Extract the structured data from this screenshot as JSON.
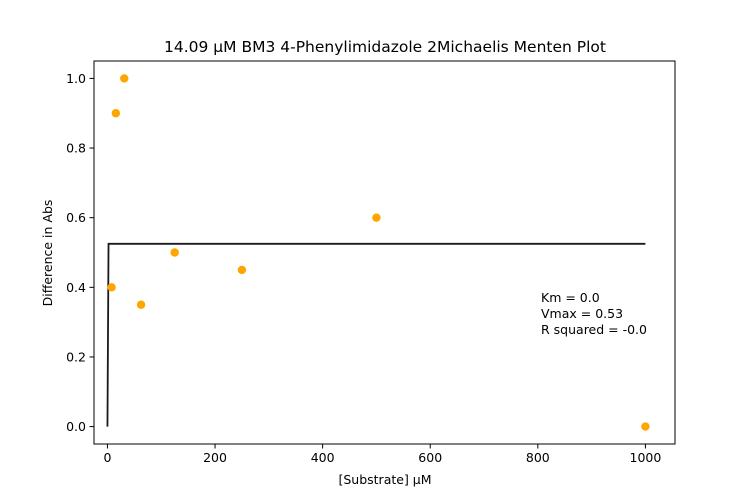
{
  "chart_data": {
    "type": "scatter",
    "title": "14.09 µM BM3 4-Phenylimidazole 2Michaelis Menten Plot",
    "xlabel": "[Substrate] µM",
    "ylabel": "Difference in Abs",
    "xlim": [
      -25,
      1055
    ],
    "ylim": [
      -0.05,
      1.05
    ],
    "xticks": [
      0,
      200,
      400,
      600,
      800,
      1000
    ],
    "yticks": [
      0.0,
      0.2,
      0.4,
      0.6,
      0.8,
      1.0
    ],
    "xtick_labels": [
      "0",
      "200",
      "400",
      "600",
      "800",
      "1000"
    ],
    "ytick_labels": [
      "0.0",
      "0.2",
      "0.4",
      "0.6",
      "0.8",
      "1.0"
    ],
    "grid": false,
    "series": [
      {
        "kind": "scatter",
        "color": "#ffa500",
        "points": [
          {
            "x": 7.8,
            "y": 0.4
          },
          {
            "x": 15.6,
            "y": 0.9
          },
          {
            "x": 31.25,
            "y": 1.0
          },
          {
            "x": 62.5,
            "y": 0.35
          },
          {
            "x": 125,
            "y": 0.5
          },
          {
            "x": 250,
            "y": 0.45
          },
          {
            "x": 500,
            "y": 0.6
          },
          {
            "x": 1000,
            "y": 0.0
          }
        ]
      },
      {
        "kind": "line",
        "color": "#1a1a1a",
        "points": [
          {
            "x": 0,
            "y": 0.0
          },
          {
            "x": 2,
            "y": 0.525
          },
          {
            "x": 1000,
            "y": 0.525
          }
        ]
      }
    ],
    "annotations": [
      "Km = 0.0",
      "Vmax = 0.53",
      "R squared = -0.0"
    ]
  }
}
